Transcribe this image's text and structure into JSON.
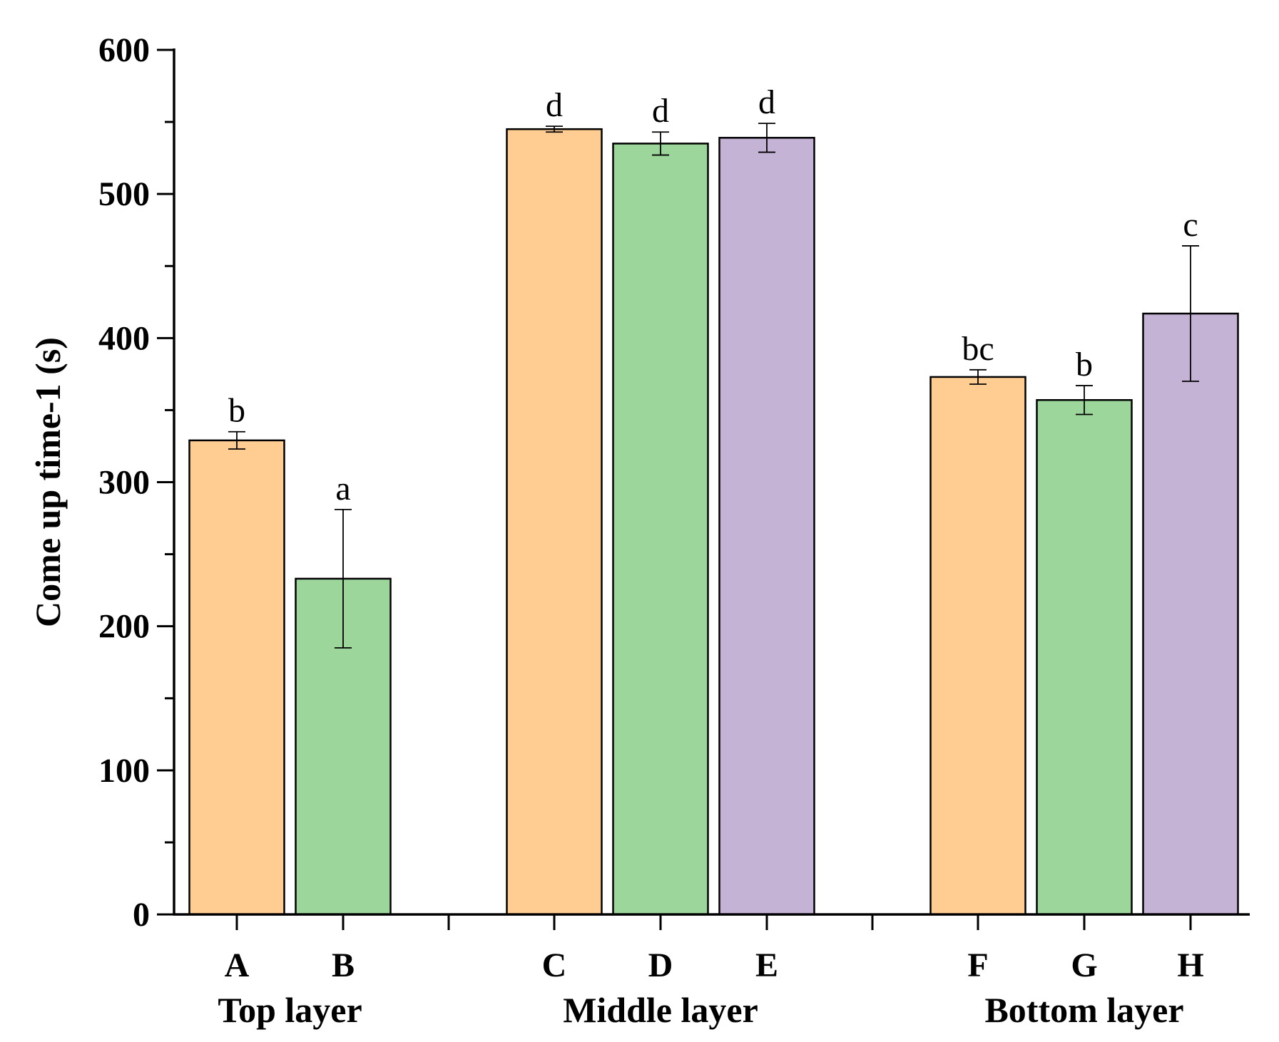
{
  "chart_data": {
    "type": "bar",
    "ylabel": "Come up time-1 (s)",
    "ylim": [
      0,
      600
    ],
    "yticks": [
      0,
      100,
      200,
      300,
      400,
      500,
      600
    ],
    "grid": false,
    "groups": [
      {
        "label": "Top layer",
        "bars": [
          {
            "category": "A",
            "value": 329,
            "error": 6,
            "sig": "b",
            "color": "#FFCC91"
          },
          {
            "category": "B",
            "value": 233,
            "error": 48,
            "sig": "a",
            "color": "#9DD69B"
          }
        ]
      },
      {
        "label": "Middle layer",
        "bars": [
          {
            "category": "C",
            "value": 545,
            "error": 2,
            "sig": "d",
            "color": "#FFCC91"
          },
          {
            "category": "D",
            "value": 535,
            "error": 8,
            "sig": "d",
            "color": "#9DD69B"
          },
          {
            "category": "E",
            "value": 539,
            "error": 10,
            "sig": "d",
            "color": "#C5B3D5"
          }
        ]
      },
      {
        "label": "Bottom layer",
        "bars": [
          {
            "category": "F",
            "value": 373,
            "error": 5,
            "sig": "bc",
            "color": "#FFCC91"
          },
          {
            "category": "G",
            "value": 357,
            "error": 10,
            "sig": "b",
            "color": "#9DD69B"
          },
          {
            "category": "H",
            "value": 417,
            "error": 47,
            "sig": "c",
            "color": "#C5B3D5"
          }
        ]
      }
    ]
  }
}
